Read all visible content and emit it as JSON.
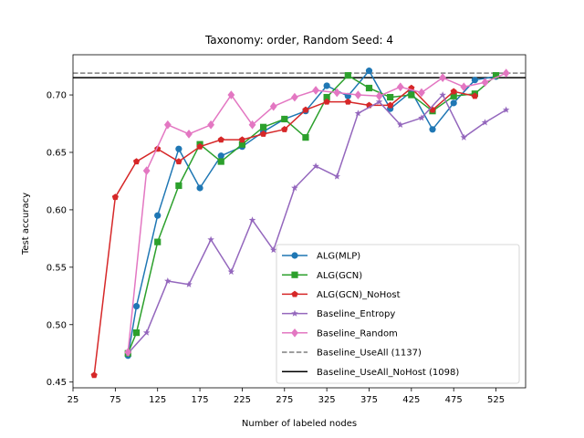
{
  "chart_data": {
    "type": "line",
    "title": "Taxonomy: order, Random Seed: 4",
    "xlabel": "Number of labeled nodes",
    "ylabel": "Test accuracy",
    "xlim": [
      25,
      560
    ],
    "ylim": [
      0.445,
      0.735
    ],
    "xticks": [
      25,
      75,
      125,
      175,
      225,
      275,
      325,
      375,
      425,
      475,
      525
    ],
    "yticks": [
      0.45,
      0.5,
      0.55,
      0.6,
      0.65,
      0.7
    ],
    "ytick_labels": [
      "0.45",
      "0.50",
      "0.55",
      "0.60",
      "0.65",
      "0.70"
    ],
    "grid": false,
    "legend_position": "lower-right",
    "series": [
      {
        "name": "ALG(MLP)",
        "color": "#1f77b4",
        "marker": "circle",
        "x": [
          90,
          100,
          125,
          150,
          175,
          200,
          225,
          250,
          275,
          300,
          325,
          350,
          375,
          400,
          425,
          450,
          475,
          500,
          525
        ],
        "y": [
          0.473,
          0.516,
          0.595,
          0.653,
          0.619,
          0.647,
          0.655,
          0.668,
          0.679,
          0.686,
          0.708,
          0.699,
          0.721,
          0.688,
          0.703,
          0.67,
          0.693,
          0.713,
          0.716
        ]
      },
      {
        "name": "ALG(GCN)",
        "color": "#2ca02c",
        "marker": "square",
        "x": [
          90,
          100,
          125,
          150,
          175,
          200,
          225,
          250,
          275,
          300,
          325,
          350,
          375,
          400,
          425,
          450,
          475,
          500,
          525
        ],
        "y": [
          0.475,
          0.493,
          0.572,
          0.621,
          0.657,
          0.642,
          0.657,
          0.672,
          0.679,
          0.663,
          0.698,
          0.717,
          0.706,
          0.698,
          0.7,
          0.686,
          0.699,
          0.701,
          0.717
        ]
      },
      {
        "name": "ALG(GCN)_NoHost",
        "color": "#d62728",
        "marker": "pentagon",
        "x": [
          50,
          75,
          100,
          125,
          150,
          175,
          200,
          225,
          250,
          275,
          300,
          325,
          350,
          375,
          400,
          425,
          450,
          475,
          500
        ],
        "y": [
          0.456,
          0.611,
          0.642,
          0.653,
          0.642,
          0.655,
          0.661,
          0.661,
          0.666,
          0.67,
          0.687,
          0.694,
          0.694,
          0.691,
          0.691,
          0.706,
          0.687,
          0.703,
          0.699
        ]
      },
      {
        "name": "Baseline_Entropy",
        "color": "#9467bd",
        "marker": "star",
        "x": [
          90,
          112,
          137,
          162,
          188,
          212,
          237,
          262,
          287,
          312,
          337,
          362,
          387,
          412,
          437,
          462,
          487,
          512,
          537
        ],
        "y": [
          0.475,
          0.493,
          0.538,
          0.535,
          0.574,
          0.546,
          0.591,
          0.565,
          0.619,
          0.638,
          0.629,
          0.684,
          0.694,
          0.674,
          0.68,
          0.7,
          0.663,
          0.676,
          0.687
        ]
      },
      {
        "name": "Baseline_Random",
        "color": "#e377c2",
        "marker": "diamond",
        "x": [
          90,
          112,
          137,
          162,
          188,
          212,
          237,
          262,
          287,
          312,
          337,
          362,
          387,
          412,
          437,
          462,
          487,
          512,
          537
        ],
        "y": [
          0.476,
          0.634,
          0.674,
          0.666,
          0.674,
          0.7,
          0.674,
          0.69,
          0.698,
          0.704,
          0.702,
          0.7,
          0.699,
          0.707,
          0.702,
          0.715,
          0.707,
          0.711,
          0.719
        ]
      }
    ],
    "reference_lines": [
      {
        "name": "Baseline_UseAll (1137)",
        "y": 0.719,
        "color": "#7f7f7f",
        "style": "dashed"
      },
      {
        "name": "Baseline_UseAll_NoHost (1098)",
        "y": 0.715,
        "color": "#000000",
        "style": "solid"
      }
    ]
  }
}
